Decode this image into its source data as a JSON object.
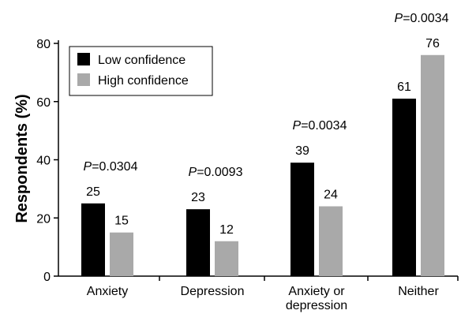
{
  "chart_data": {
    "type": "bar",
    "title": "",
    "xlabel": "",
    "ylabel": "Respondents (%)",
    "ylim": [
      0,
      80
    ],
    "yticks": [
      "0",
      "20",
      "40",
      "60",
      "80"
    ],
    "grid": false,
    "legend_position": "top-left",
    "categories": [
      [
        "Anxiety"
      ],
      [
        "Depression"
      ],
      [
        "Anxiety or",
        "depression"
      ],
      [
        "Neither"
      ]
    ],
    "series": [
      {
        "name": "Low confidence",
        "color": "#000000",
        "values": [
          25,
          23,
          39,
          61
        ],
        "labels": [
          "25",
          "23",
          "39",
          "61"
        ]
      },
      {
        "name": "High confidence",
        "color": "#a9a9a9",
        "values": [
          15,
          12,
          24,
          76
        ],
        "labels": [
          "15",
          "12",
          "24",
          "76"
        ]
      }
    ],
    "annotations": [
      {
        "category_index": 0,
        "p_prefix": "P",
        "p_value": "=0.0304"
      },
      {
        "category_index": 1,
        "p_prefix": "P",
        "p_value": "=0.0093"
      },
      {
        "category_index": 2,
        "p_prefix": "P",
        "p_value": "=0.0034"
      },
      {
        "category_index": 3,
        "p_prefix": "P",
        "p_value": "=0.0034"
      }
    ]
  }
}
